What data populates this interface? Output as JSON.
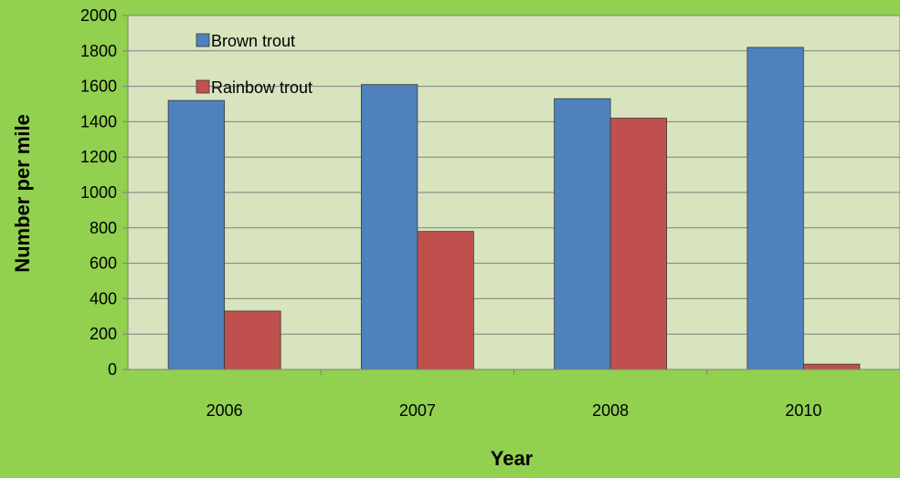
{
  "chart_data": {
    "type": "bar",
    "title": "",
    "xlabel": "Year",
    "ylabel": "Number per mile",
    "categories": [
      "2006",
      "2007",
      "2008",
      "2010"
    ],
    "series": [
      {
        "name": "Brown trout",
        "color": "#4f81bd",
        "values": [
          1520,
          1610,
          1530,
          1820
        ]
      },
      {
        "name": "Rainbow trout",
        "color": "#c0504d",
        "values": [
          330,
          780,
          1420,
          30
        ]
      }
    ],
    "ylim": [
      0,
      2000
    ],
    "yticks": [
      0,
      200,
      400,
      600,
      800,
      1000,
      1200,
      1400,
      1600,
      1800,
      2000
    ],
    "grid": true,
    "legend_position": "top-left",
    "colors": {
      "page_background": "#92d050",
      "plot_background": "#d7e4bd",
      "gridline": "#808080"
    }
  }
}
